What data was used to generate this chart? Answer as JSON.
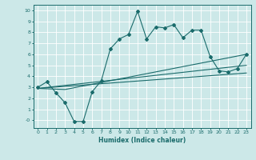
{
  "xlabel": "Humidex (Indice chaleur)",
  "bg_color": "#cce8e8",
  "line_color": "#1a6b6b",
  "grid_color": "#ffffff",
  "xlim": [
    -0.5,
    23.5
  ],
  "ylim": [
    -0.7,
    10.5
  ],
  "xticks": [
    0,
    1,
    2,
    3,
    4,
    5,
    6,
    7,
    8,
    9,
    10,
    11,
    12,
    13,
    14,
    15,
    16,
    17,
    18,
    19,
    20,
    21,
    22,
    23
  ],
  "yticks": [
    0,
    1,
    2,
    3,
    4,
    5,
    6,
    7,
    8,
    9,
    10
  ],
  "ytick_labels": [
    "-0",
    "1",
    "2",
    "3",
    "4",
    "5",
    "6",
    "7",
    "8",
    "9",
    "10"
  ],
  "series1_x": [
    0,
    1,
    2,
    3,
    4,
    5,
    6,
    7,
    8,
    9,
    10,
    11,
    12,
    13,
    14,
    15,
    16,
    17,
    18,
    19,
    20,
    21,
    22,
    23
  ],
  "series1_y": [
    3.0,
    3.5,
    2.5,
    1.6,
    -0.1,
    -0.1,
    2.6,
    3.6,
    6.5,
    7.4,
    7.8,
    9.9,
    7.4,
    8.5,
    8.4,
    8.7,
    7.5,
    8.2,
    8.2,
    5.8,
    4.5,
    4.4,
    4.7,
    6.0
  ],
  "series2_x": [
    0,
    3,
    23
  ],
  "series2_y": [
    2.9,
    2.8,
    6.0
  ],
  "series3_x": [
    0,
    23
  ],
  "series3_y": [
    2.9,
    5.0
  ],
  "series4_x": [
    0,
    23
  ],
  "series4_y": [
    2.9,
    4.3
  ]
}
